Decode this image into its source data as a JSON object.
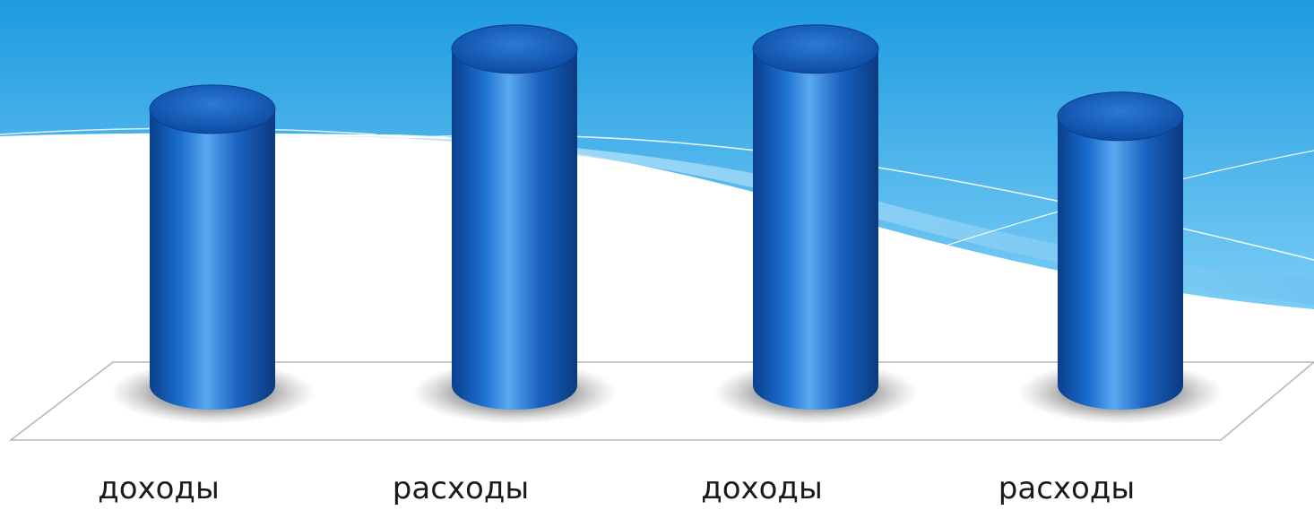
{
  "chart_data": {
    "type": "bar",
    "style": "3d-cylinder",
    "categories": [
      "доходы",
      "расходы",
      "доходы",
      "расходы"
    ],
    "values": [
      78,
      95,
      95,
      76
    ],
    "ylim": [
      0,
      100
    ],
    "title": "",
    "xlabel": "",
    "ylabel": "",
    "grid": false,
    "legend": "none"
  },
  "colors": {
    "bar_dark": "#0a3f8c",
    "bar_mid": "#1a6fd0",
    "bar_light": "#5aa8f0",
    "bar_top": "#1558b8",
    "sky_top": "#1e9be0",
    "sky_bottom": "#74c8f3",
    "floor_edge": "#b5b5b5",
    "shadow": "#3a3a3a"
  }
}
